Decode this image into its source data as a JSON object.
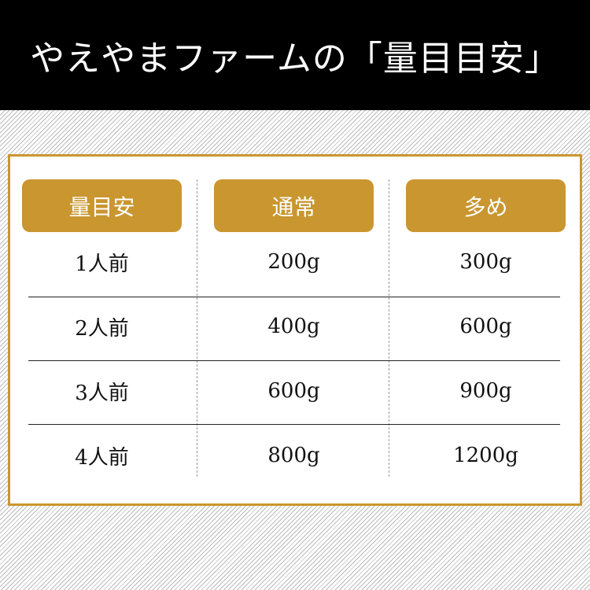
{
  "title": "やえやまファームの「量目目安」",
  "colors": {
    "accent": "#c9962f",
    "header_bg": "#000000"
  },
  "table": {
    "headers": [
      "量目安",
      "通常",
      "多め"
    ],
    "rows": [
      [
        "1人前",
        "200g",
        "300g"
      ],
      [
        "2人前",
        "400g",
        "600g"
      ],
      [
        "3人前",
        "600g",
        "900g"
      ],
      [
        "4人前",
        "800g",
        "1200g"
      ]
    ]
  }
}
